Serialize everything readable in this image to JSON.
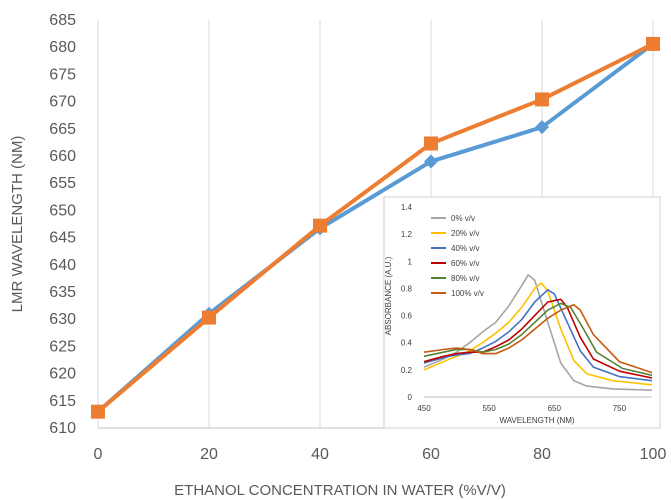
{
  "chart_data": [
    {
      "type": "line",
      "xlabel": "ETHANOL CONCENTRATION IN WATER (%V/V)",
      "ylabel": "LMR WAVELENGTH (NM)",
      "xlim": [
        0,
        100
      ],
      "ylim": [
        610,
        685
      ],
      "x_ticks": [
        0,
        20,
        40,
        60,
        80,
        100
      ],
      "y_ticks": [
        610,
        615,
        620,
        625,
        630,
        635,
        640,
        645,
        650,
        655,
        660,
        665,
        670,
        675,
        680,
        685
      ],
      "grid": "vertical",
      "legend": "none",
      "series": [
        {
          "color": "#5b9bd5",
          "marker": "diamond",
          "x": [
            0,
            20,
            40,
            60,
            80,
            100
          ],
          "y": [
            613,
            631,
            646.7,
            659,
            665.3,
            680.6
          ]
        },
        {
          "color": "#ed7d31",
          "marker": "square",
          "x": [
            0,
            20,
            40,
            60,
            80,
            100
          ],
          "y": [
            613,
            630.3,
            647.2,
            662.3,
            670.4,
            680.6
          ]
        }
      ]
    },
    {
      "type": "line",
      "inset": true,
      "xlabel": "WAVELENGTH (NM)",
      "ylabel": "ABSORBANCE (A.U.)",
      "xlim": [
        450,
        800
      ],
      "ylim": [
        0,
        1.4
      ],
      "x_ticks": [
        450,
        550,
        650,
        750
      ],
      "y_ticks": [
        0,
        0.2,
        0.4,
        0.6,
        0.8,
        1,
        1.2,
        1.4
      ],
      "legend": "top-left",
      "series": [
        {
          "name": "0% v/v",
          "color": "#a5a5a5",
          "x": [
            450,
            480,
            500,
            520,
            540,
            560,
            580,
            600,
            610,
            620,
            640,
            660,
            680,
            700,
            740,
            800
          ],
          "y": [
            0.22,
            0.28,
            0.33,
            0.4,
            0.48,
            0.55,
            0.67,
            0.82,
            0.9,
            0.86,
            0.55,
            0.25,
            0.12,
            0.08,
            0.06,
            0.05
          ]
        },
        {
          "name": "20% v/v",
          "color": "#ffc000",
          "x": [
            450,
            480,
            500,
            520,
            540,
            560,
            580,
            600,
            620,
            630,
            640,
            660,
            680,
            700,
            740,
            800
          ],
          "y": [
            0.2,
            0.26,
            0.3,
            0.34,
            0.4,
            0.47,
            0.55,
            0.66,
            0.8,
            0.84,
            0.78,
            0.5,
            0.27,
            0.17,
            0.12,
            0.09
          ]
        },
        {
          "name": "40% v/v",
          "color": "#4472c4",
          "x": [
            450,
            480,
            500,
            520,
            540,
            560,
            580,
            600,
            620,
            640,
            650,
            670,
            690,
            710,
            750,
            800
          ],
          "y": [
            0.25,
            0.29,
            0.31,
            0.32,
            0.36,
            0.41,
            0.48,
            0.57,
            0.7,
            0.79,
            0.76,
            0.55,
            0.34,
            0.22,
            0.15,
            0.12
          ]
        },
        {
          "name": "60% v/v",
          "color": "#c00000",
          "x": [
            450,
            480,
            500,
            520,
            540,
            560,
            580,
            600,
            620,
            640,
            660,
            670,
            690,
            710,
            750,
            800
          ],
          "y": [
            0.26,
            0.3,
            0.32,
            0.33,
            0.33,
            0.37,
            0.42,
            0.5,
            0.6,
            0.7,
            0.72,
            0.66,
            0.44,
            0.28,
            0.19,
            0.14
          ]
        },
        {
          "name": "80% v/v",
          "color": "#548235",
          "x": [
            450,
            480,
            500,
            520,
            540,
            560,
            580,
            600,
            620,
            640,
            660,
            675,
            695,
            715,
            755,
            800
          ],
          "y": [
            0.3,
            0.33,
            0.35,
            0.35,
            0.33,
            0.35,
            0.39,
            0.46,
            0.55,
            0.64,
            0.69,
            0.66,
            0.5,
            0.33,
            0.21,
            0.16
          ]
        },
        {
          "name": "100% v/v",
          "color": "#c55a11",
          "x": [
            450,
            480,
            500,
            520,
            540,
            560,
            580,
            600,
            620,
            640,
            660,
            680,
            690,
            710,
            750,
            800
          ],
          "y": [
            0.33,
            0.35,
            0.36,
            0.35,
            0.32,
            0.32,
            0.36,
            0.42,
            0.5,
            0.58,
            0.64,
            0.68,
            0.64,
            0.46,
            0.26,
            0.18
          ]
        }
      ]
    }
  ]
}
